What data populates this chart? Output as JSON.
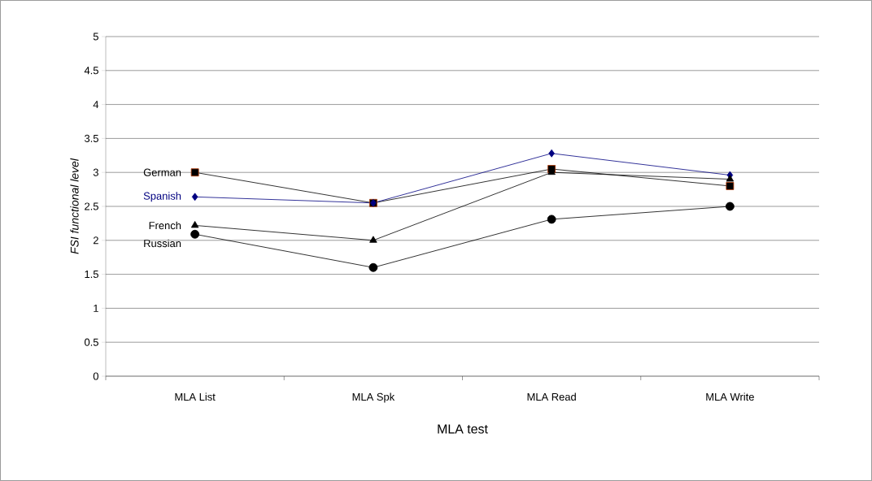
{
  "chart_data": {
    "type": "line",
    "xlabel": "MLA test",
    "ylabel": "FSI functional level",
    "categories": [
      "MLA List",
      "MLA Spk",
      "MLA Read",
      "MLA Write"
    ],
    "series": [
      {
        "name": "German",
        "color": "#000000",
        "marker": "square",
        "values": [
          3.0,
          2.55,
          3.05,
          2.8
        ]
      },
      {
        "name": "Spanish",
        "color": "#000080",
        "marker": "diamond",
        "values": [
          2.64,
          2.55,
          3.28,
          2.96
        ]
      },
      {
        "name": "French",
        "color": "#000000",
        "marker": "triangle",
        "values": [
          2.22,
          2.0,
          3.0,
          2.9
        ]
      },
      {
        "name": "Russian",
        "color": "#000000",
        "marker": "circle",
        "values": [
          2.09,
          1.6,
          2.31,
          2.5
        ]
      }
    ],
    "ylim": [
      0,
      5
    ],
    "yticks": [
      0,
      0.5,
      1,
      1.5,
      2,
      2.5,
      3,
      3.5,
      4,
      4.5,
      5
    ],
    "grid": "y",
    "legend": false
  }
}
